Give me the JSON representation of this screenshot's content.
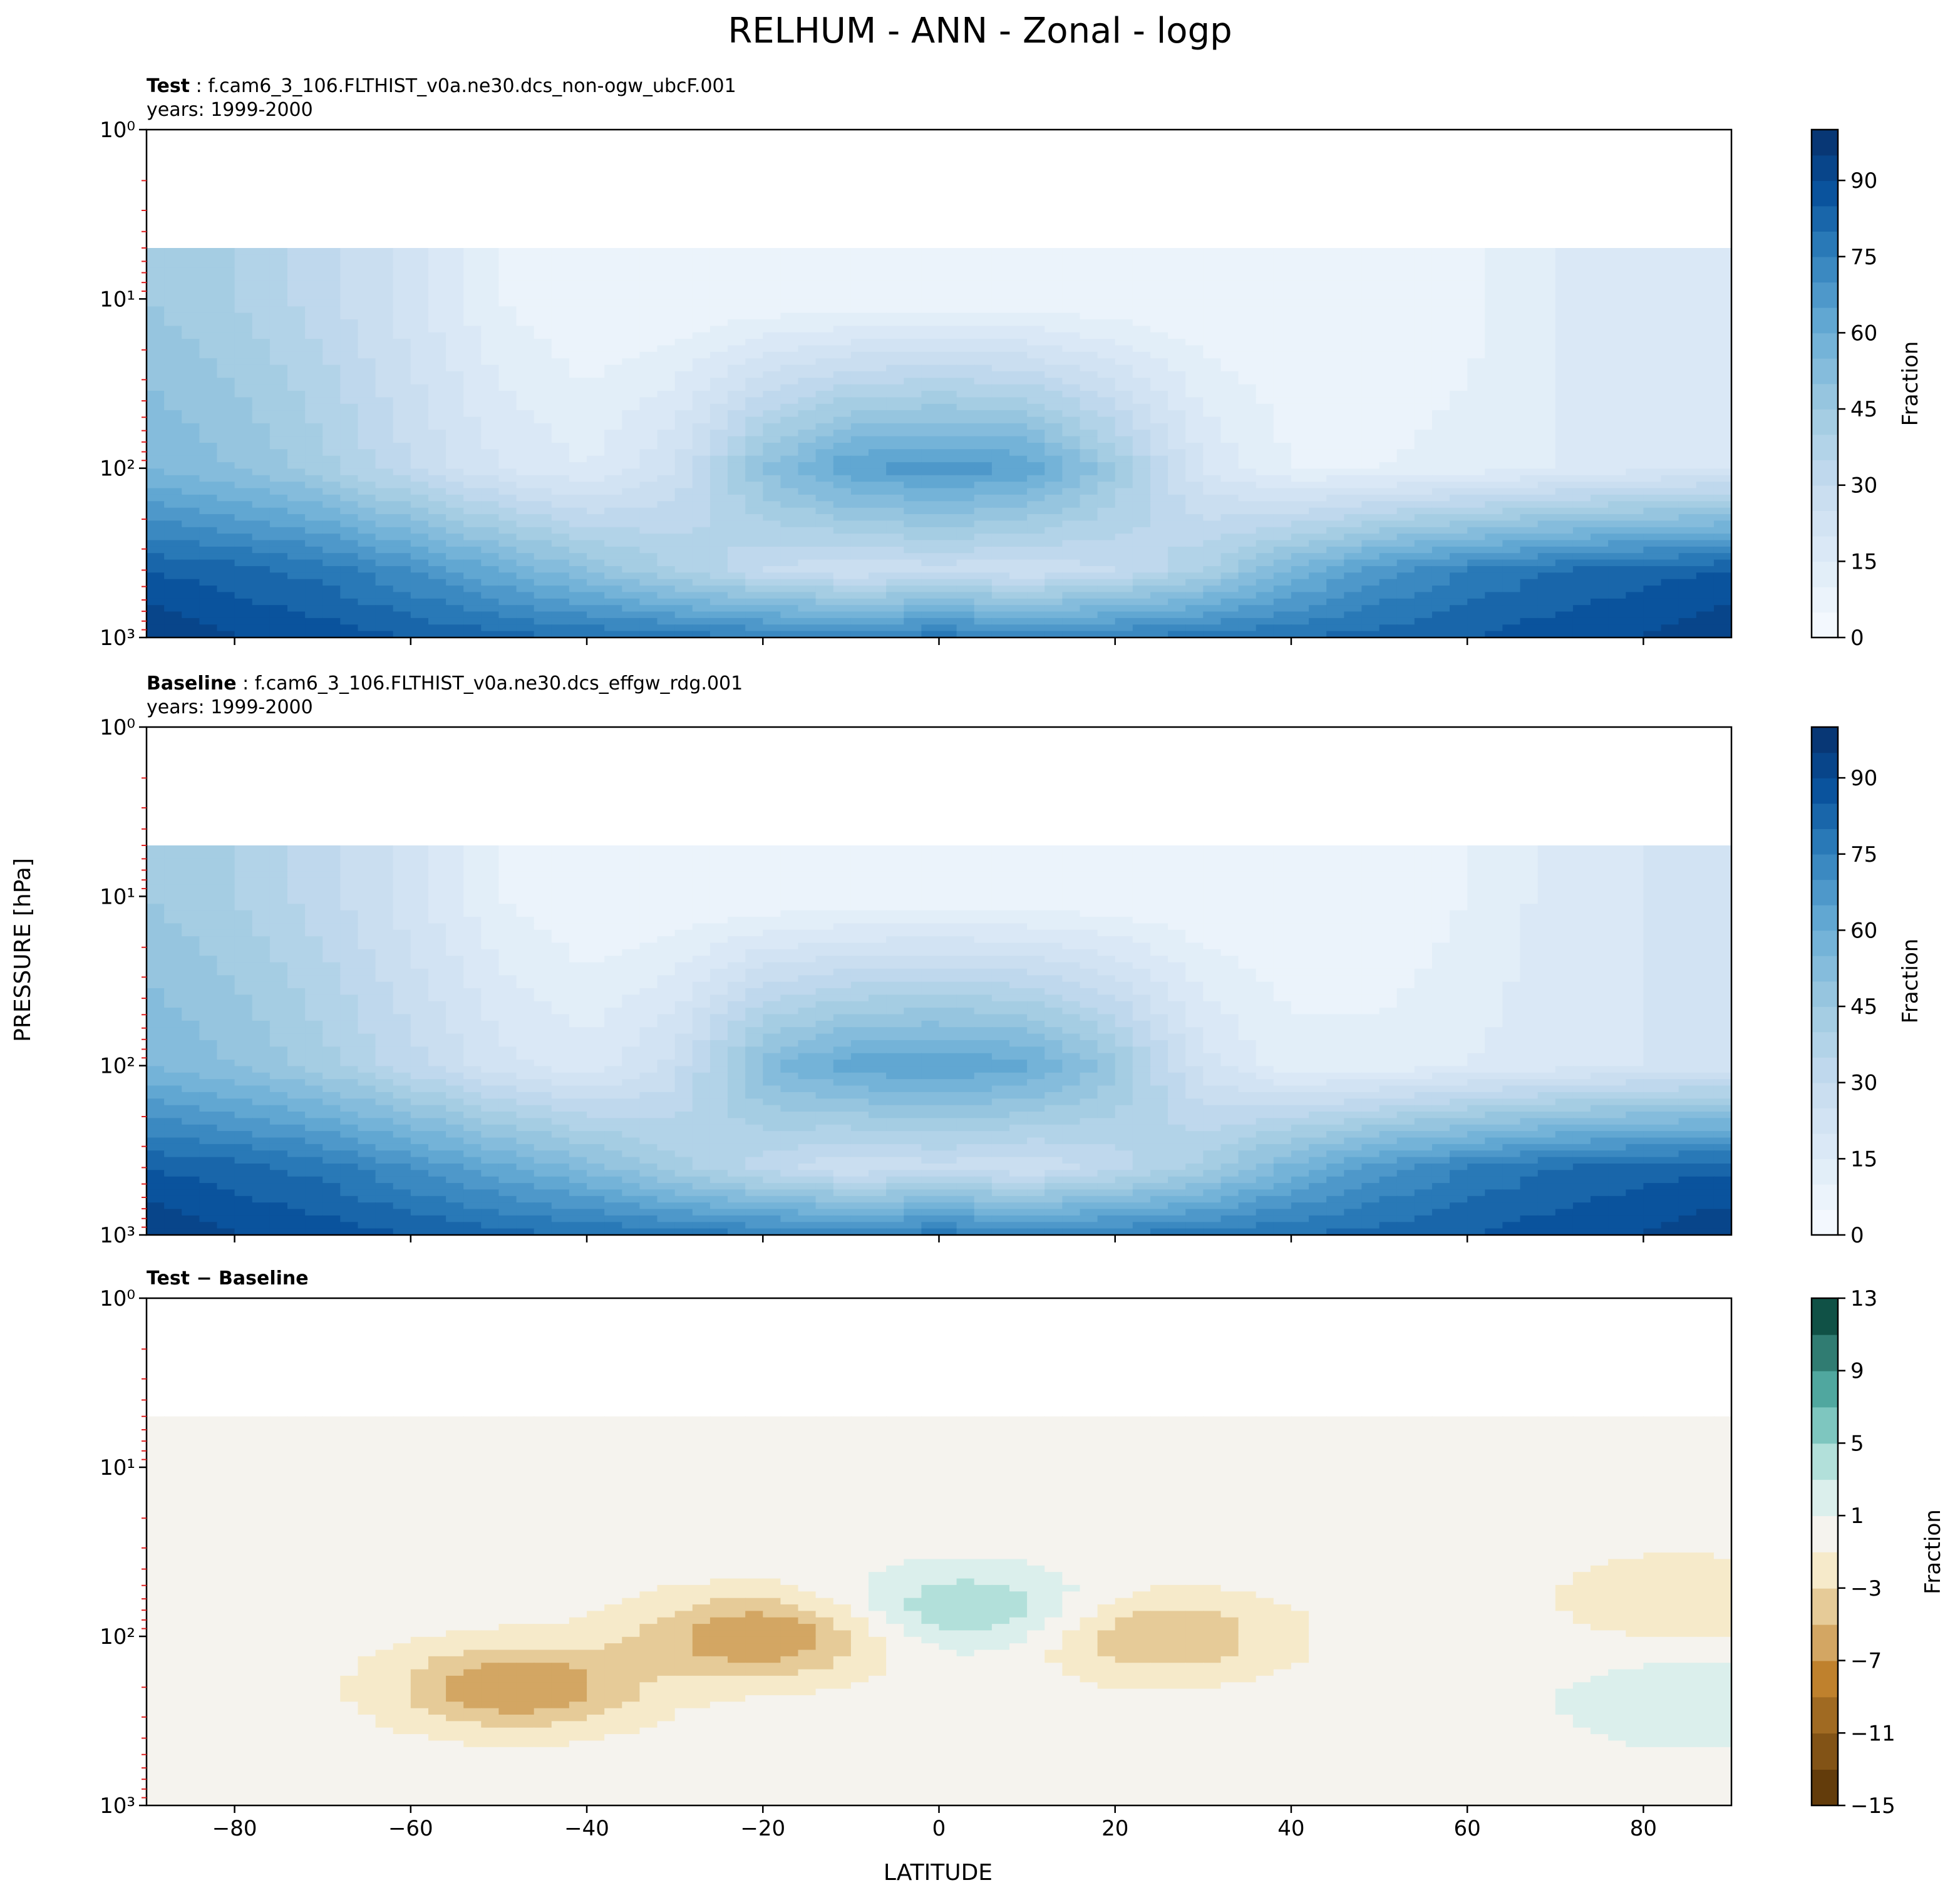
{
  "figure": {
    "suptitle": "RELHUM - ANN - Zonal - logp",
    "shared_ylabel": "PRESSURE [hPa]",
    "shared_xlabel": "LATITUDE"
  },
  "chart_data": [
    {
      "type": "heatmap",
      "panel_id": "test",
      "title_bold": "Test",
      "title_rest": ": f.cam6_3_106.FLTHIST_v0a.ne30.dcs_non-ogw_ubcF.001",
      "subtitle": "years: 1999-2000",
      "xlim": [
        -90,
        90
      ],
      "x_ticks": [
        -80,
        -60,
        -40,
        -20,
        0,
        20,
        40,
        60,
        80
      ],
      "y_scale": "log",
      "y_inverted": true,
      "ylim": [
        1000,
        1
      ],
      "y_tick_labels": [
        "10^0",
        "10^1",
        "10^2",
        "10^3"
      ],
      "model_top_hPa": 5,
      "colorbar": {
        "label": "Fraction",
        "colormap": "Blues",
        "range": [
          0,
          100
        ],
        "ticks": [
          0,
          15,
          30,
          45,
          60,
          75,
          90
        ]
      },
      "zonal_profile_lat": [
        -90,
        -80,
        -70,
        -60,
        -50,
        -40,
        -30,
        -20,
        -10,
        0,
        10,
        20,
        30,
        40,
        50,
        60,
        70,
        80,
        90
      ],
      "relhum_at_10hPa": [
        45,
        40,
        32,
        22,
        10,
        5,
        5,
        5,
        5,
        5,
        5,
        5,
        5,
        5,
        5,
        8,
        15,
        18,
        20
      ],
      "relhum_at_100hPa": [
        55,
        50,
        42,
        30,
        20,
        15,
        25,
        50,
        65,
        68,
        65,
        45,
        20,
        10,
        10,
        12,
        15,
        18,
        20
      ],
      "relhum_at_400hPa": [
        85,
        82,
        78,
        70,
        60,
        50,
        40,
        30,
        25,
        28,
        25,
        30,
        40,
        55,
        68,
        75,
        80,
        83,
        85
      ],
      "relhum_at_1000hPa": [
        95,
        90,
        88,
        85,
        82,
        80,
        78,
        76,
        75,
        78,
        75,
        76,
        78,
        80,
        82,
        85,
        88,
        90,
        95
      ]
    },
    {
      "type": "heatmap",
      "panel_id": "baseline",
      "title_bold": "Baseline",
      "title_rest": ": f.cam6_3_106.FLTHIST_v0a.ne30.dcs_effgw_rdg.001",
      "subtitle": "years: 1999-2000",
      "xlim": [
        -90,
        90
      ],
      "x_ticks": [
        -80,
        -60,
        -40,
        -20,
        0,
        20,
        40,
        60,
        80
      ],
      "y_scale": "log",
      "y_inverted": true,
      "ylim": [
        1000,
        1
      ],
      "y_tick_labels": [
        "10^0",
        "10^1",
        "10^2",
        "10^3"
      ],
      "model_top_hPa": 5,
      "colorbar": {
        "label": "Fraction",
        "colormap": "Blues",
        "range": [
          0,
          100
        ],
        "ticks": [
          0,
          15,
          30,
          45,
          60,
          75,
          90
        ]
      },
      "zonal_profile_lat": [
        -90,
        -80,
        -70,
        -60,
        -50,
        -40,
        -30,
        -20,
        -10,
        0,
        10,
        20,
        30,
        40,
        50,
        60,
        70,
        80,
        90
      ],
      "relhum_at_10hPa": [
        45,
        40,
        32,
        22,
        10,
        5,
        5,
        5,
        5,
        5,
        5,
        5,
        5,
        5,
        5,
        10,
        17,
        20,
        22
      ],
      "relhum_at_100hPa": [
        55,
        50,
        42,
        32,
        22,
        17,
        27,
        53,
        63,
        65,
        62,
        47,
        22,
        12,
        12,
        15,
        18,
        20,
        22
      ],
      "relhum_at_400hPa": [
        85,
        82,
        78,
        70,
        62,
        53,
        42,
        32,
        25,
        28,
        25,
        32,
        42,
        57,
        68,
        75,
        80,
        83,
        84
      ],
      "relhum_at_1000hPa": [
        95,
        90,
        88,
        85,
        82,
        80,
        78,
        76,
        75,
        78,
        75,
        76,
        78,
        80,
        82,
        85,
        88,
        90,
        95
      ]
    },
    {
      "type": "heatmap",
      "panel_id": "difference",
      "title_bold": "Test − Baseline",
      "title_rest": "",
      "subtitle": "",
      "xlim": [
        -90,
        90
      ],
      "x_ticks": [
        -80,
        -60,
        -40,
        -20,
        0,
        20,
        40,
        60,
        80
      ],
      "y_scale": "log",
      "y_inverted": true,
      "ylim": [
        1000,
        1
      ],
      "y_tick_labels": [
        "10^0",
        "10^1",
        "10^2",
        "10^3"
      ],
      "model_top_hPa": 5,
      "colorbar": {
        "label": "Fraction",
        "colormap": "BrBG",
        "range": [
          -15,
          13
        ],
        "ticks": [
          -15,
          -11,
          -7,
          -3,
          1,
          5,
          9,
          13
        ]
      },
      "difference_features": [
        {
          "lat": -48,
          "pressure_hPa": 200,
          "value": -7
        },
        {
          "lat": -20,
          "pressure_hPa": 100,
          "value": -7
        },
        {
          "lat": 3,
          "pressure_hPa": 70,
          "value": 5
        },
        {
          "lat": 25,
          "pressure_hPa": 100,
          "value": -5
        },
        {
          "lat": 85,
          "pressure_hPa": 60,
          "value": -3
        },
        {
          "lat": 85,
          "pressure_hPa": 250,
          "value": 3
        },
        {
          "lat": -80,
          "pressure_hPa": 20,
          "value": -1
        },
        {
          "lat": 75,
          "pressure_hPa": 12,
          "value": -1
        }
      ],
      "x_tick_labels": [
        "−80",
        "−60",
        "−40",
        "−20",
        "0",
        "20",
        "40",
        "60",
        "80"
      ],
      "colorbar_tick_labels": [
        "−15",
        "−11",
        "−7",
        "−3",
        "1",
        "5",
        "9",
        "13"
      ]
    }
  ]
}
